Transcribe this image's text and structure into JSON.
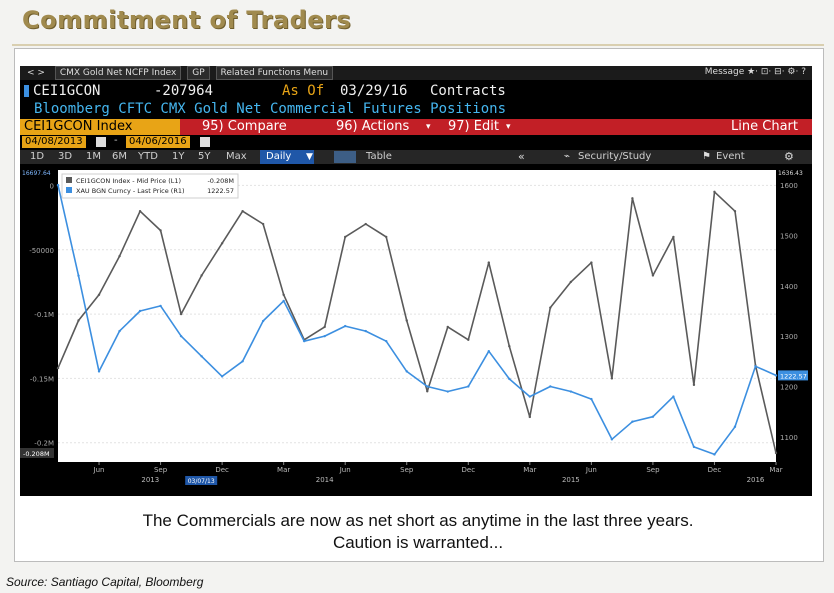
{
  "slide": {
    "title": "Commitment of Traders",
    "caption_line1": "The Commercials are now as net short as anytime in the last three years.",
    "caption_line2": "Caution is warranted...",
    "source": "Source: Santiago Capital, Bloomberg"
  },
  "terminal": {
    "topbar": {
      "nav": "< >",
      "security_field": "CMX Gold Net NCFP Index",
      "gp_field": "GP",
      "related_menu": "Related Functions Menu",
      "right_text": "Message ★· ⊡· ⊟· ⚙· ?"
    },
    "ticker": "CEI1GCON",
    "value": "-207964",
    "as_of_label": "As Of",
    "as_of_date": "03/29/16",
    "units": "Contracts",
    "description": "Bloomberg CFTC CMX Gold Net Commercial Futures Positions",
    "menubar": {
      "index_label": "CEI1GCON Index",
      "compare": "95) Compare",
      "actions": "96) Actions",
      "edit": "97) Edit",
      "chart_type": "Line Chart"
    },
    "start_date": "04/08/2013",
    "end_date": "04/06/2016",
    "ranges": [
      "1D",
      "3D",
      "1M",
      "6M",
      "YTD",
      "1Y",
      "5Y",
      "Max"
    ],
    "frequency": "Daily",
    "table_label": "Table",
    "security_study": "Security/Study",
    "event": "Event"
  },
  "colors": {
    "background": "#000000",
    "cot_line": "#5a5a5a",
    "gold_line": "#3c8fe0",
    "menubar": "#c21f26",
    "date_box": "#e8a416",
    "title": "#a08a4e"
  },
  "chart_data": {
    "type": "line",
    "legend": [
      {
        "label": "CEI1GCON Index - Mid Price (L1)",
        "last": "-0.208M"
      },
      {
        "label": "XAU BGN Curncy - Last Price (R1)",
        "last": "1222.57"
      }
    ],
    "left_axis": {
      "ticks": [
        "0",
        "-50000",
        "-0.1M",
        "-0.15M",
        "-0.2M"
      ],
      "range": [
        -215000,
        12000
      ],
      "top_label": "16697.64",
      "last_label": "-0.208M"
    },
    "right_axis": {
      "ticks": [
        "1600",
        "1500",
        "1400",
        "1300",
        "1200",
        "1100"
      ],
      "range": [
        1050,
        1630
      ],
      "top_label": "1636.43",
      "last_label": "1222.57"
    },
    "x_months": [
      "Jun",
      "Sep",
      "Dec",
      "Mar",
      "Jun",
      "Sep",
      "Dec",
      "Mar",
      "Jun",
      "Sep",
      "Dec",
      "Mar"
    ],
    "x_years": [
      "2013",
      "2014",
      "2015",
      "2016"
    ],
    "x_marker": "03/07/13",
    "x": [
      "2013-04",
      "2013-05",
      "2013-06",
      "2013-07",
      "2013-08",
      "2013-09",
      "2013-10",
      "2013-11",
      "2013-12",
      "2014-01",
      "2014-02",
      "2014-03",
      "2014-04",
      "2014-05",
      "2014-06",
      "2014-07",
      "2014-08",
      "2014-09",
      "2014-10",
      "2014-11",
      "2014-12",
      "2015-01",
      "2015-02",
      "2015-03",
      "2015-04",
      "2015-05",
      "2015-06",
      "2015-07",
      "2015-08",
      "2015-09",
      "2015-10",
      "2015-11",
      "2015-12",
      "2016-01",
      "2016-02",
      "2016-03"
    ],
    "series": [
      {
        "name": "CEI1GCON Index - Mid Price",
        "axis": "left",
        "values": [
          -142000,
          -105000,
          -85000,
          -55000,
          -20000,
          -35000,
          -100000,
          -70000,
          -45000,
          -20000,
          -30000,
          -85000,
          -120000,
          -110000,
          -40000,
          -30000,
          -40000,
          -105000,
          -160000,
          -110000,
          -120000,
          -60000,
          -125000,
          -180000,
          -95000,
          -75000,
          -60000,
          -150000,
          -10000,
          -70000,
          -40000,
          -155000,
          -5000,
          -20000,
          -140000,
          -208000
        ]
      },
      {
        "name": "XAU BGN Curncy - Last Price",
        "axis": "right",
        "values": [
          1600,
          1420,
          1230,
          1310,
          1350,
          1360,
          1300,
          1260,
          1220,
          1250,
          1330,
          1370,
          1290,
          1300,
          1320,
          1310,
          1290,
          1230,
          1200,
          1190,
          1200,
          1270,
          1215,
          1180,
          1200,
          1190,
          1175,
          1095,
          1130,
          1140,
          1180,
          1080,
          1065,
          1120,
          1240,
          1222
        ]
      }
    ]
  }
}
